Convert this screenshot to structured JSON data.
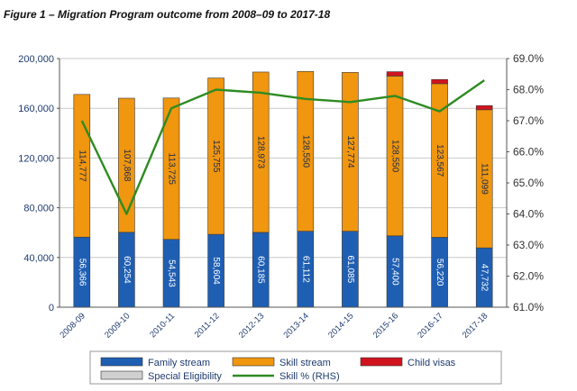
{
  "figure_title": "Figure 1 – Migration Program outcome from 2008–09 to 2017-18",
  "colors": {
    "family": "#1f5fb3",
    "skill": "#f0960f",
    "child": "#d0141e",
    "special": "#d0d0d0",
    "skill_pct_line": "#2e8b22",
    "axis_text": "#1f3b6e"
  },
  "chart_data": {
    "type": "bar",
    "stacked": true,
    "title": "Figure 1 – Migration Program outcome from 2008–09 to 2017-18",
    "categories": [
      "2008-09",
      "2009-10",
      "2010-11",
      "2011-12",
      "2012-13",
      "2013-14",
      "2014-15",
      "2015-16",
      "2016-17",
      "2017-18"
    ],
    "series": [
      {
        "name": "Family stream",
        "values": [
          56366,
          60254,
          54543,
          58604,
          60185,
          61112,
          61085,
          57400,
          56220,
          47732
        ],
        "labels": [
          "56,366",
          "60,254",
          "54,543",
          "58,604",
          "60,185",
          "61,112",
          "61,085",
          "57,400",
          "56,220",
          "47,732"
        ]
      },
      {
        "name": "Skill stream",
        "values": [
          114777,
          107868,
          113725,
          125755,
          128973,
          128550,
          127774,
          128550,
          123567,
          111099
        ],
        "labels": [
          "114,777",
          "107,868",
          "113,725",
          "125,755",
          "128,973",
          "128,550",
          "127,774",
          "128,550",
          "123,567",
          "111,099"
        ]
      },
      {
        "name": "Child visas",
        "values": [
          0,
          0,
          0,
          0,
          0,
          0,
          0,
          3500,
          3400,
          3350
        ]
      },
      {
        "name": "Special Eligibility",
        "values": [
          0,
          0,
          0,
          0,
          0,
          0,
          0,
          0,
          0,
          0
        ]
      }
    ],
    "line_series": {
      "name": "Skill % (RHS)",
      "axis": "right",
      "values": [
        67.0,
        64.0,
        67.4,
        68.0,
        67.9,
        67.7,
        67.6,
        67.8,
        67.3,
        68.3
      ]
    },
    "y_left": {
      "ylim": [
        0,
        200000
      ],
      "ticks": [
        0,
        40000,
        80000,
        120000,
        160000,
        200000
      ],
      "tick_labels": [
        "0",
        "40,000",
        "80,000",
        "120,000",
        "160,000",
        "200,000"
      ]
    },
    "y_right": {
      "ylim": [
        61.0,
        69.0
      ],
      "ticks": [
        61,
        62,
        63,
        64,
        65,
        66,
        67,
        68,
        69
      ],
      "tick_labels": [
        "61.0%",
        "62.0%",
        "63.0%",
        "64.0%",
        "65.0%",
        "66.0%",
        "67.0%",
        "68.0%",
        "69.0%"
      ]
    },
    "xlabel": "",
    "ylabel": "",
    "grid": true,
    "legend_position": "bottom"
  }
}
